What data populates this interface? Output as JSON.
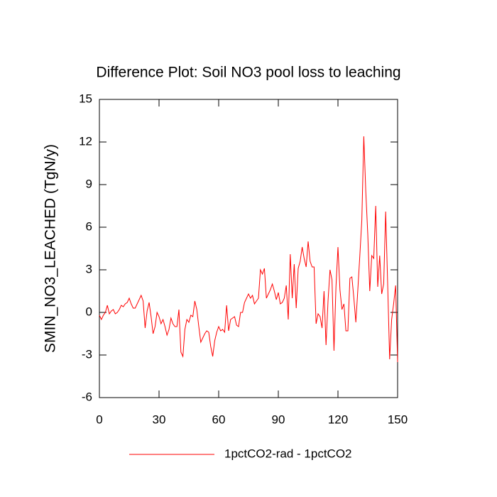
{
  "chart_data": {
    "type": "line",
    "title": "Difference Plot: Soil NO3 pool loss to leaching",
    "y_label": "SMIN_NO3_LEACHED  (TgN/y)",
    "x": [
      0,
      1,
      2,
      3,
      4,
      5,
      6,
      7,
      8,
      9,
      10,
      11,
      12,
      13,
      14,
      15,
      16,
      17,
      18,
      19,
      20,
      21,
      22,
      23,
      24,
      25,
      26,
      27,
      28,
      29,
      30,
      31,
      32,
      33,
      34,
      35,
      36,
      37,
      38,
      39,
      40,
      41,
      42,
      43,
      44,
      45,
      46,
      47,
      48,
      49,
      50,
      51,
      52,
      53,
      54,
      55,
      56,
      57,
      58,
      59,
      60,
      61,
      62,
      63,
      64,
      65,
      66,
      67,
      68,
      69,
      70,
      71,
      72,
      73,
      74,
      75,
      76,
      77,
      78,
      79,
      80,
      81,
      82,
      83,
      84,
      85,
      86,
      87,
      88,
      89,
      90,
      91,
      92,
      93,
      94,
      95,
      96,
      97,
      98,
      99,
      100,
      101,
      102,
      103,
      104,
      105,
      106,
      107,
      108,
      109,
      110,
      111,
      112,
      113,
      114,
      115,
      116,
      117,
      118,
      119,
      120,
      121,
      122,
      123,
      124,
      125,
      126,
      127,
      128,
      129,
      130,
      131,
      132,
      133,
      134,
      135,
      136,
      137,
      138,
      139,
      140,
      141,
      142,
      143,
      144,
      145,
      146,
      147,
      148,
      149,
      150
    ],
    "series": [
      {
        "name": "1pctCO2-rad - 1pctCO2",
        "color": "#ff0000",
        "values": [
          -0.2,
          -0.5,
          -0.2,
          0,
          0.5,
          -0.1,
          0.1,
          0.2,
          -0.1,
          0,
          0.2,
          0.5,
          0.4,
          0.6,
          0.7,
          1.0,
          0.6,
          0.3,
          0.3,
          0.6,
          0.9,
          1.2,
          0.8,
          -1.1,
          0.1,
          0.7,
          -0.3,
          -1.5,
          -1.0,
          0,
          -0.3,
          -0.8,
          -0.5,
          -1.0,
          -1.6,
          -1.2,
          -0.4,
          -0.8,
          -1.0,
          -1.0,
          0.2,
          -2.8,
          -3.1,
          -1.2,
          -0.5,
          -0.7,
          -0.2,
          -0.3,
          0.8,
          0.2,
          -1.0,
          -2.1,
          -1.8,
          -1.5,
          -1.3,
          -1.4,
          -2.4,
          -3.1,
          -2.0,
          -1.4,
          -1.0,
          -1.3,
          -1.2,
          -1.4,
          0.5,
          -1.3,
          -0.5,
          -0.4,
          -0.3,
          -0.9,
          -1.0,
          0,
          0,
          0.7,
          1.0,
          1.3,
          1.0,
          1.2,
          0.6,
          0.8,
          1.0,
          3.0,
          2.7,
          3.1,
          1.0,
          1.3,
          1.6,
          2.0,
          1.5,
          0.9,
          1.4,
          0.6,
          0.7,
          1.0,
          1.9,
          -0.5,
          4.1,
          1.0,
          3.4,
          0.3,
          3.1,
          3.6,
          4.6,
          3.8,
          3.2,
          5.0,
          3.6,
          3.2,
          3.2,
          -0.8,
          -0.1,
          -0.3,
          -1.1,
          1.5,
          -2.3,
          0.8,
          3.0,
          2.3,
          -2.7,
          1.8,
          4.6,
          1.6,
          0.2,
          0.6,
          -1.3,
          -1.3,
          2.4,
          2.5,
          1.0,
          -0.7,
          1.6,
          4.0,
          6.5,
          12.4,
          8.5,
          5.5,
          1.5,
          4.0,
          3.8,
          7.5,
          1.8,
          4.0,
          1.3,
          2.0,
          7.1,
          2.0,
          -3.3,
          -0.5,
          0.6,
          1.9,
          -3.5
        ]
      }
    ],
    "xlim": [
      0,
      150
    ],
    "xticks": [
      0,
      30,
      60,
      90,
      120,
      150
    ],
    "ylim": [
      -6,
      15
    ],
    "yticks": [
      -6,
      -3,
      0,
      3,
      6,
      9,
      12,
      15
    ],
    "legend": "bottom"
  }
}
